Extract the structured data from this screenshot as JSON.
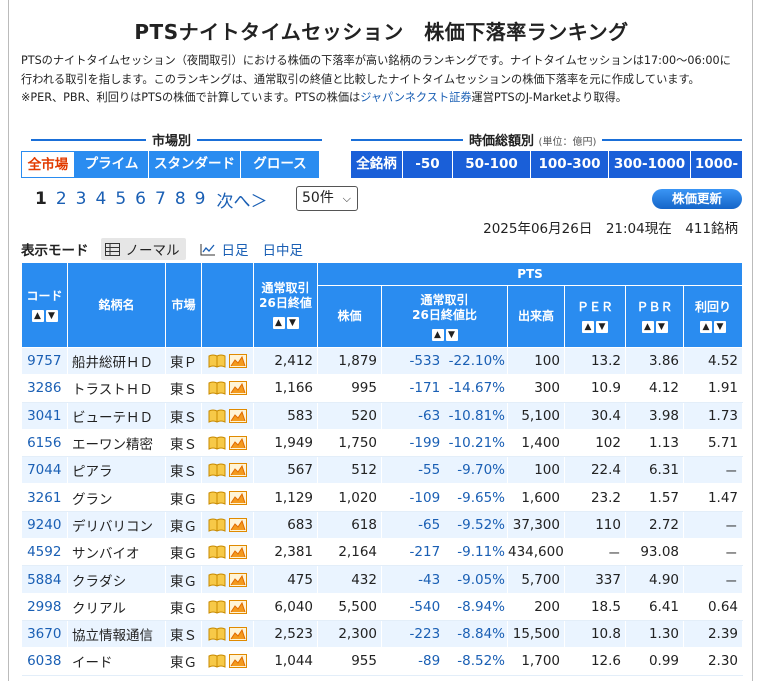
{
  "title": "PTSナイトタイムセッション　株価下落率ランキング",
  "description": {
    "text_before": "PTSのナイトタイムセッション（夜間取引）における株価の下落率が高い銘柄のランキングです。ナイトタイムセッションは17:00〜06:00に行われる取引を指します。このランキングは、通常取引の終値と比較したナイトタイムセッションの株価下落率を元に作成しています。※PER、PBR、利回りはPTSの株価で計算しています。PTSの株価は",
    "link": "ジャパンネクスト証券",
    "text_after": "運営PTSのJ-Marketより取得。"
  },
  "market_section": {
    "heading": "市場別",
    "tabs": [
      "全市場",
      "プライム",
      "スタンダード",
      "グロース"
    ],
    "selected": "全市場"
  },
  "cap_section": {
    "heading": "時価総額別",
    "unit": "(単位：億円)",
    "tabs": [
      "全銘柄",
      "-50",
      "50-100",
      "100-300",
      "300-1000",
      "1000-"
    ]
  },
  "pager": {
    "pages": [
      "1",
      "2",
      "3",
      "4",
      "5",
      "6",
      "7",
      "8",
      "9"
    ],
    "current": "1",
    "next": "次へ＞"
  },
  "per_page": "50件",
  "refresh_label": "株価更新",
  "timestamp": "2025年06月26日　21:04現在　411銘柄",
  "mode": {
    "label": "表示モード",
    "options": [
      "ノーマル",
      "日足",
      "日中足"
    ],
    "selected": "ノーマル"
  },
  "table": {
    "headers": {
      "code": "コード",
      "name": "銘柄名",
      "market": "市場",
      "close": [
        "通常取引",
        "26日終値"
      ],
      "pts": "PTS",
      "price": "株価",
      "change": [
        "通常取引",
        "26日終値比"
      ],
      "volume": "出来高",
      "per": "ＰＥＲ",
      "pbr": "ＰＢＲ",
      "yield": "利回り"
    },
    "rows": [
      {
        "code": "9757",
        "name": "船井総研ＨＤ",
        "market": "東Ｐ",
        "close": "2,412",
        "price": "1,879",
        "diff": "-533",
        "pct": "-22.10",
        "volume": "100",
        "per": "13.2",
        "pbr": "3.86",
        "yield": "4.52"
      },
      {
        "code": "3286",
        "name": "トラストＨＤ",
        "market": "東Ｓ",
        "close": "1,166",
        "price": "995",
        "diff": "-171",
        "pct": "-14.67",
        "volume": "300",
        "per": "10.9",
        "pbr": "4.12",
        "yield": "1.91"
      },
      {
        "code": "3041",
        "name": "ビューテＨＤ",
        "market": "東Ｓ",
        "close": "583",
        "price": "520",
        "diff": "-63",
        "pct": "-10.81",
        "volume": "5,100",
        "per": "30.4",
        "pbr": "3.98",
        "yield": "1.73"
      },
      {
        "code": "6156",
        "name": "エーワン精密",
        "market": "東Ｓ",
        "close": "1,949",
        "price": "1,750",
        "diff": "-199",
        "pct": "-10.21",
        "volume": "1,400",
        "per": "102",
        "pbr": "1.13",
        "yield": "5.71"
      },
      {
        "code": "7044",
        "name": "ピアラ",
        "market": "東Ｓ",
        "close": "567",
        "price": "512",
        "diff": "-55",
        "pct": "-9.70",
        "volume": "100",
        "per": "22.4",
        "pbr": "6.31",
        "yield": "－"
      },
      {
        "code": "3261",
        "name": "グラン",
        "market": "東Ｇ",
        "close": "1,129",
        "price": "1,020",
        "diff": "-109",
        "pct": "-9.65",
        "volume": "1,600",
        "per": "23.2",
        "pbr": "1.57",
        "yield": "1.47"
      },
      {
        "code": "9240",
        "name": "デリバリコン",
        "market": "東Ｇ",
        "close": "683",
        "price": "618",
        "diff": "-65",
        "pct": "-9.52",
        "volume": "37,300",
        "per": "110",
        "pbr": "2.72",
        "yield": "－"
      },
      {
        "code": "4592",
        "name": "サンバイオ",
        "market": "東Ｇ",
        "close": "2,381",
        "price": "2,164",
        "diff": "-217",
        "pct": "-9.11",
        "volume": "434,600",
        "per": "－",
        "pbr": "93.08",
        "yield": "－"
      },
      {
        "code": "5884",
        "name": "クラダシ",
        "market": "東Ｇ",
        "close": "475",
        "price": "432",
        "diff": "-43",
        "pct": "-9.05",
        "volume": "5,700",
        "per": "337",
        "pbr": "4.90",
        "yield": "－"
      },
      {
        "code": "2998",
        "name": "クリアル",
        "market": "東Ｇ",
        "close": "6,040",
        "price": "5,500",
        "diff": "-540",
        "pct": "-8.94",
        "volume": "200",
        "per": "18.5",
        "pbr": "6.41",
        "yield": "0.64"
      },
      {
        "code": "3670",
        "name": "協立情報通信",
        "market": "東Ｓ",
        "close": "2,523",
        "price": "2,300",
        "diff": "-223",
        "pct": "-8.84",
        "volume": "15,500",
        "per": "10.8",
        "pbr": "1.30",
        "yield": "2.39"
      },
      {
        "code": "6038",
        "name": "イード",
        "market": "東Ｇ",
        "close": "1,044",
        "price": "955",
        "diff": "-89",
        "pct": "-8.52",
        "volume": "1,700",
        "per": "12.6",
        "pbr": "0.99",
        "yield": "2.30"
      }
    ]
  },
  "colors": {
    "tab_blue": "#2a8cf0",
    "cap_blue": "#1a5fd8",
    "link_blue": "#1a5fb4",
    "selected_red": "#e23a00"
  }
}
